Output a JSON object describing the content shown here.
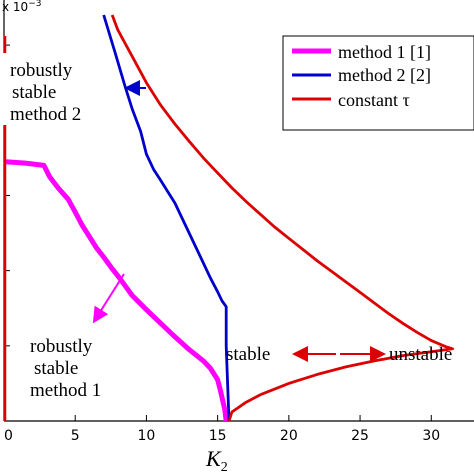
{
  "chart_data": {
    "type": "line",
    "xlabel_main": "K",
    "xlabel_sub": "2",
    "y_exponent": "x 10",
    "y_exponent_power": "−3",
    "xlim": [
      0,
      33
    ],
    "ylim": [
      0,
      5.6
    ],
    "x_ticks": [
      0,
      5,
      10,
      15,
      20,
      25,
      30
    ],
    "x_tick_labels": [
      "0",
      "5",
      "10",
      "15",
      "20",
      "25",
      "30"
    ],
    "y_ticks": [
      1,
      2,
      3,
      4,
      5
    ],
    "legend_position": "top-right",
    "series": [
      {
        "name": "method 1 [1]",
        "color": "#ff00ff",
        "points": [
          [
            0.0,
            3.45
          ],
          [
            1.5,
            3.43
          ],
          [
            2.8,
            3.4
          ],
          [
            3.2,
            3.25
          ],
          [
            3.8,
            3.1
          ],
          [
            4.5,
            2.95
          ],
          [
            5.0,
            2.78
          ],
          [
            5.5,
            2.6
          ],
          [
            6.0,
            2.45
          ],
          [
            6.5,
            2.3
          ],
          [
            7.0,
            2.18
          ],
          [
            7.5,
            2.05
          ],
          [
            8.0,
            1.93
          ],
          [
            8.5,
            1.8
          ],
          [
            9.0,
            1.67
          ],
          [
            10.0,
            1.48
          ],
          [
            11.0,
            1.3
          ],
          [
            12.0,
            1.12
          ],
          [
            13.0,
            0.95
          ],
          [
            14.0,
            0.8
          ],
          [
            14.5,
            0.7
          ],
          [
            15.0,
            0.55
          ],
          [
            15.2,
            0.4
          ],
          [
            15.5,
            0.15
          ],
          [
            15.6,
            0.0
          ]
        ]
      },
      {
        "name": "method 2 [2]",
        "color": "#0000cc",
        "points": [
          [
            7.0,
            5.4
          ],
          [
            7.8,
            4.9
          ],
          [
            8.5,
            4.45
          ],
          [
            9.0,
            4.15
          ],
          [
            9.6,
            3.85
          ],
          [
            10.0,
            3.55
          ],
          [
            10.5,
            3.35
          ],
          [
            11.0,
            3.2
          ],
          [
            11.5,
            3.05
          ],
          [
            12.0,
            2.9
          ],
          [
            12.5,
            2.7
          ],
          [
            13.0,
            2.5
          ],
          [
            13.5,
            2.3
          ],
          [
            14.0,
            2.1
          ],
          [
            14.5,
            1.9
          ],
          [
            15.0,
            1.72
          ],
          [
            15.3,
            1.6
          ],
          [
            15.6,
            1.52
          ],
          [
            15.6,
            1.0
          ],
          [
            15.7,
            0.5
          ],
          [
            15.8,
            0.0
          ]
        ]
      },
      {
        "name": "constant τ",
        "color": "#dd0000",
        "points": [
          [
            7.6,
            5.4
          ],
          [
            8.0,
            5.2
          ],
          [
            9.0,
            4.85
          ],
          [
            10.0,
            4.5
          ],
          [
            11.0,
            4.2
          ],
          [
            12.0,
            3.95
          ],
          [
            13.0,
            3.72
          ],
          [
            14.0,
            3.5
          ],
          [
            15.0,
            3.3
          ],
          [
            16.0,
            3.1
          ],
          [
            17.0,
            2.92
          ],
          [
            18.0,
            2.75
          ],
          [
            19.0,
            2.58
          ],
          [
            20.0,
            2.43
          ],
          [
            21.0,
            2.28
          ],
          [
            22.0,
            2.13
          ],
          [
            23.0,
            1.99
          ],
          [
            24.0,
            1.85
          ],
          [
            25.0,
            1.71
          ],
          [
            26.0,
            1.57
          ],
          [
            27.0,
            1.43
          ],
          [
            28.0,
            1.3
          ],
          [
            29.0,
            1.18
          ],
          [
            30.0,
            1.07
          ],
          [
            31.0,
            0.99
          ],
          [
            31.5,
            0.96
          ],
          [
            30.0,
            0.92
          ],
          [
            28.0,
            0.87
          ],
          [
            26.0,
            0.8
          ],
          [
            24.0,
            0.72
          ],
          [
            22.0,
            0.62
          ],
          [
            20.0,
            0.5
          ],
          [
            18.0,
            0.35
          ],
          [
            17.0,
            0.25
          ],
          [
            16.0,
            0.12
          ],
          [
            15.8,
            0.0
          ]
        ]
      }
    ],
    "annotations": [
      {
        "lines": [
          "robustly",
          "stable",
          "method 2"
        ]
      },
      {
        "lines": [
          "robustly",
          "stable",
          "method 1"
        ]
      },
      {
        "lines": [
          "stable"
        ]
      },
      {
        "lines": [
          "unstable"
        ]
      }
    ]
  }
}
